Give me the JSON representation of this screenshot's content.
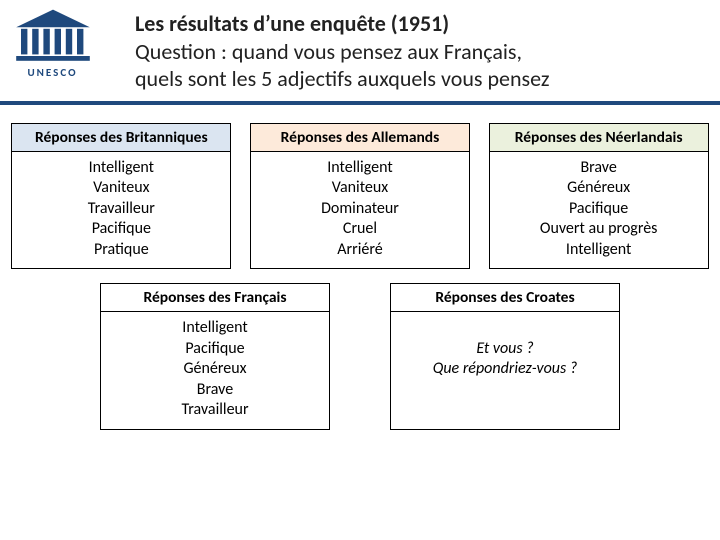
{
  "colors": {
    "underline": "#1f497d",
    "logo": "#1f497d",
    "hdr_blue": "#dbe5f1",
    "hdr_peach": "#fdeada",
    "hdr_green": "#ebf1dd",
    "hdr_white": "#ffffff",
    "border": "#000000"
  },
  "logo": {
    "text": "UNESCO"
  },
  "title": {
    "line1_bold": "Les résultats d’une enquête (1951)",
    "line2": "Question : quand vous pensez aux Français,",
    "line3": "quels sont les 5 adjectifs auxquels vous pensez"
  },
  "panels_row1": [
    {
      "header": "Réponses des Britanniques",
      "header_color": "hdr-blue",
      "items": [
        "Intelligent",
        "Vaniteux",
        "Travailleur",
        "Pacifique",
        "Pratique"
      ]
    },
    {
      "header": "Réponses des Allemands",
      "header_color": "hdr-peach",
      "items": [
        "Intelligent",
        "Vaniteux",
        "Dominateur",
        "Cruel",
        "Arriéré"
      ]
    },
    {
      "header": "Réponses des Néerlandais",
      "header_color": "hdr-green",
      "items": [
        "Brave",
        "Généreux",
        "Pacifique",
        "Ouvert au progrès",
        "Intelligent"
      ]
    }
  ],
  "panels_row2": [
    {
      "header": "Réponses des Français",
      "header_color": "hdr-white",
      "items": [
        "Intelligent",
        "Pacifique",
        "Généreux",
        "Brave",
        "Travailleur"
      ]
    },
    {
      "header": "Réponses des Croates",
      "header_color": "hdr-white",
      "body_italic": true,
      "items": [
        "",
        "Et vous ?",
        "Que répondriez-vous ?"
      ]
    }
  ]
}
